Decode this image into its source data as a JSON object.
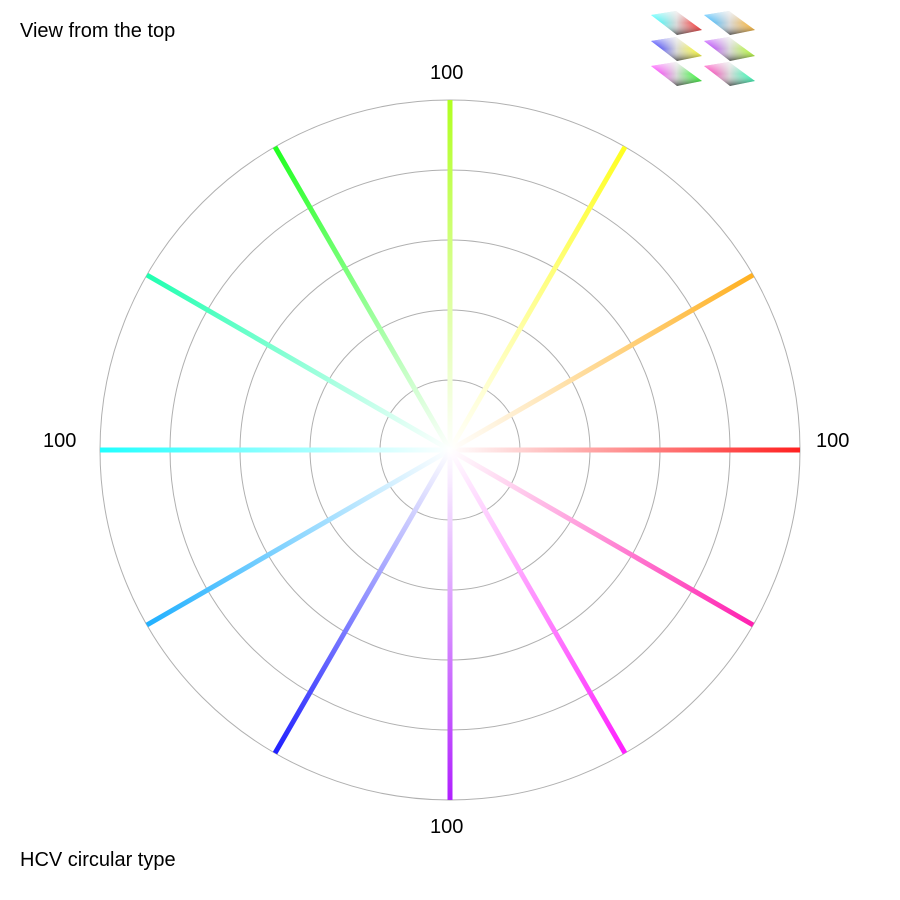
{
  "top_label": "View from the top",
  "bottom_label": "HCV circular type",
  "chart_data": {
    "type": "polar-radial",
    "radial_range": [
      0,
      100
    ],
    "rings": [
      20,
      40,
      60,
      80,
      100
    ],
    "grid": true,
    "axis_labels": {
      "top": "100",
      "right": "100",
      "bottom": "100",
      "left": "100"
    },
    "series": [
      {
        "hue_deg": 0,
        "color": "#ff2020"
      },
      {
        "hue_deg": 30,
        "color": "#ffb020"
      },
      {
        "hue_deg": 60,
        "color": "#ffff20"
      },
      {
        "hue_deg": 90,
        "color": "#b0ff20"
      },
      {
        "hue_deg": 120,
        "color": "#20ff20"
      },
      {
        "hue_deg": 150,
        "color": "#20ffb0"
      },
      {
        "hue_deg": 180,
        "color": "#20ffff"
      },
      {
        "hue_deg": 210,
        "color": "#20b0ff"
      },
      {
        "hue_deg": 240,
        "color": "#2020ff"
      },
      {
        "hue_deg": 270,
        "color": "#b020ff"
      },
      {
        "hue_deg": 300,
        "color": "#ff20ff"
      },
      {
        "hue_deg": 330,
        "color": "#ff20b0"
      }
    ],
    "center_color": "#ffffff",
    "ring_color": "#b0b0b0"
  },
  "thumbnails": [
    {
      "a": "#20ffff",
      "b": "#ff2020"
    },
    {
      "a": "#20b0ff",
      "b": "#ffb020"
    },
    {
      "a": "#2020ff",
      "b": "#ffff20"
    },
    {
      "a": "#b020ff",
      "b": "#b0ff20"
    },
    {
      "a": "#ff20ff",
      "b": "#20ff20"
    },
    {
      "a": "#ff20b0",
      "b": "#20ffb0"
    }
  ]
}
